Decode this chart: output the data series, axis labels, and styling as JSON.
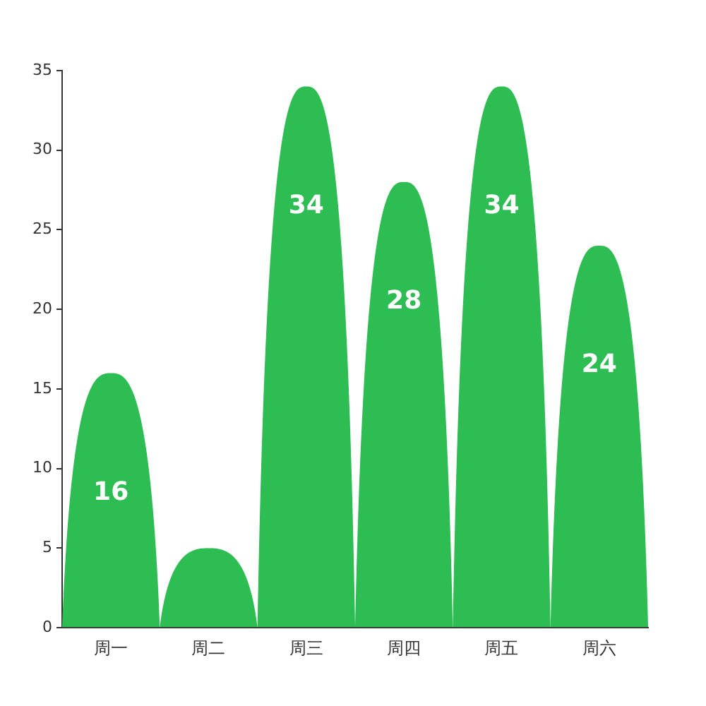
{
  "chart_data": {
    "type": "bar",
    "categories": [
      "周一",
      "周二",
      "周三",
      "周四",
      "周五",
      "周六"
    ],
    "values": [
      16,
      5,
      34,
      28,
      34,
      24
    ],
    "color": "#2ebd52",
    "value_labels": [
      "16",
      null,
      "34",
      "28",
      "34",
      "24"
    ],
    "ylim": [
      0,
      35
    ],
    "yticks": [
      0,
      5,
      10,
      15,
      20,
      25,
      30,
      35
    ],
    "grid": false,
    "legend": false
  }
}
